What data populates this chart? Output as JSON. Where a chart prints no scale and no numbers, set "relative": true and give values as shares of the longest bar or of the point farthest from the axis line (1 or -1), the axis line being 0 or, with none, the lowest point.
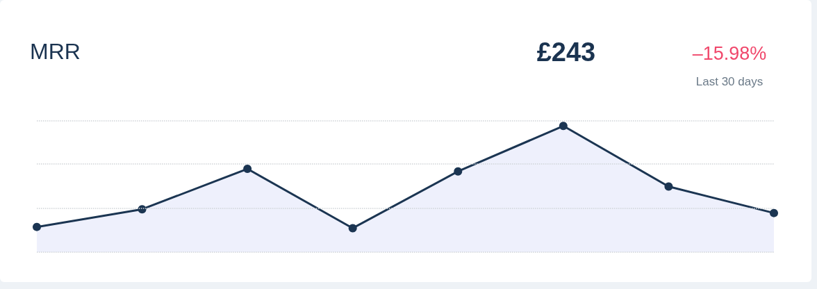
{
  "chart_data": {
    "type": "area",
    "title": "MRR",
    "annotations": [
      "£243",
      "–15.98%",
      "Last 30 days"
    ],
    "categories": [
      null,
      null,
      null,
      null,
      null,
      null,
      null,
      null
    ],
    "series": [
      {
        "color": "#1b3552",
        "values": [
          0.2,
          0.34,
          0.66,
          0.19,
          0.64,
          1,
          0.52,
          0.31
        ]
      }
    ],
    "ref_lines": [
      {
        "axis": "y",
        "value": 0,
        "color": "#d0d4d8",
        "line_style": "dotted"
      },
      {
        "axis": "y",
        "value": 0.35,
        "color": "#d0d4d8",
        "line_style": "dotted"
      },
      {
        "axis": "y",
        "value": 0.7,
        "color": "#d0d4d8",
        "line_style": "dotted"
      },
      {
        "axis": "y",
        "value": 1.04,
        "color": "#d0d4d8",
        "line_style": "dotted"
      }
    ],
    "relative": true,
    "marker": "circle",
    "line_style": "solid"
  }
}
